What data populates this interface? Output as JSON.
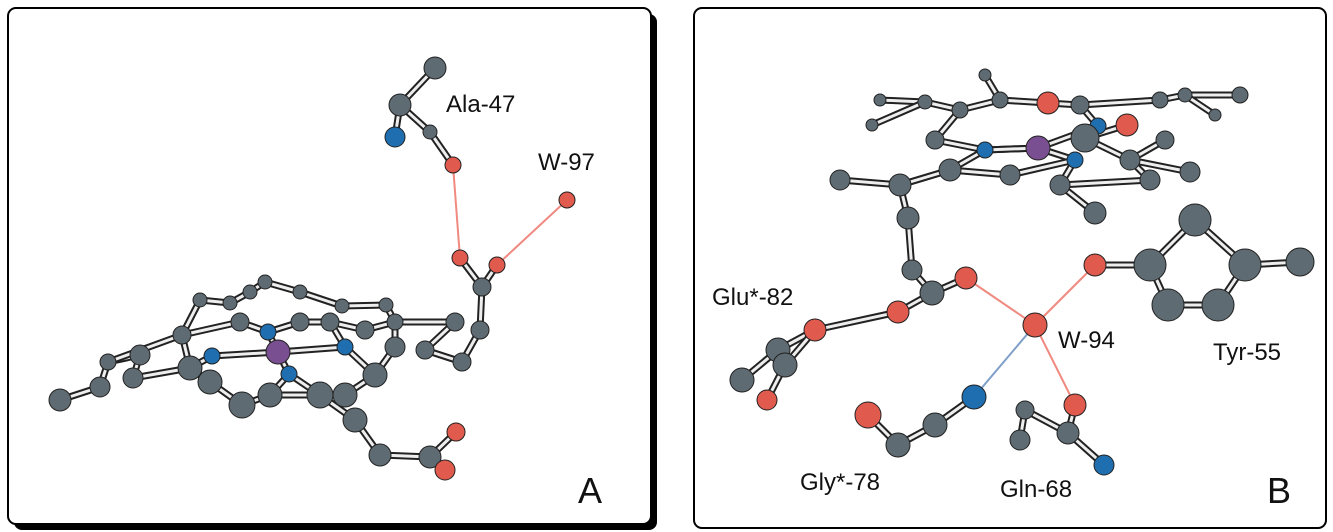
{
  "panels": [
    {
      "label": "A",
      "annotations": [
        "Ala-47",
        "W-97"
      ]
    },
    {
      "label": "B",
      "annotations": [
        "Glu*-82",
        "W-94",
        "Tyr-55",
        "Gly*-78",
        "Gln-68"
      ]
    }
  ]
}
